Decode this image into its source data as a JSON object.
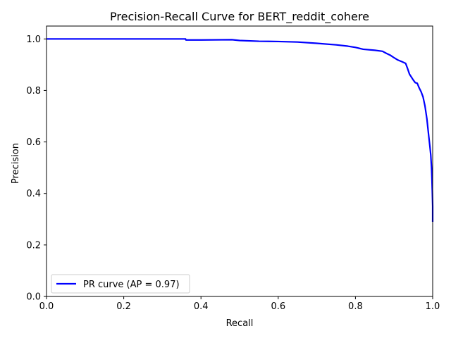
{
  "chart_data": {
    "type": "line",
    "title": "Precision-Recall Curve for BERT_reddit_cohere",
    "xlabel": "Recall",
    "ylabel": "Precision",
    "xlim": [
      0.0,
      1.0
    ],
    "ylim": [
      0.0,
      1.05
    ],
    "xticks": [
      "0.0",
      "0.2",
      "0.4",
      "0.6",
      "0.8",
      "1.0"
    ],
    "yticks": [
      "0.0",
      "0.2",
      "0.4",
      "0.6",
      "0.8",
      "1.0"
    ],
    "grid": false,
    "legend_position": "lower-left",
    "series": [
      {
        "name": "PR curve (AP = 0.97)",
        "color": "#0000ff",
        "x": [
          0.0,
          0.05,
          0.1,
          0.2,
          0.3,
          0.36,
          0.361,
          0.4,
          0.48,
          0.5,
          0.55,
          0.6,
          0.65,
          0.7,
          0.75,
          0.78,
          0.8,
          0.82,
          0.85,
          0.87,
          0.88,
          0.89,
          0.9,
          0.91,
          0.92,
          0.93,
          0.935,
          0.94,
          0.95,
          0.955,
          0.96,
          0.965,
          0.97,
          0.975,
          0.98,
          0.985,
          0.99,
          0.993,
          0.995,
          0.997,
          0.998,
          0.999,
          1.0,
          1.0,
          1.0
        ],
        "y": [
          1.0,
          1.0,
          1.0,
          1.0,
          1.0,
          1.0,
          0.996,
          0.996,
          0.997,
          0.994,
          0.991,
          0.99,
          0.988,
          0.983,
          0.977,
          0.972,
          0.967,
          0.96,
          0.956,
          0.952,
          0.944,
          0.937,
          0.927,
          0.918,
          0.912,
          0.905,
          0.885,
          0.863,
          0.84,
          0.83,
          0.828,
          0.81,
          0.795,
          0.775,
          0.74,
          0.69,
          0.62,
          0.58,
          0.55,
          0.5,
          0.46,
          0.41,
          0.35,
          0.29,
          0.29
        ]
      }
    ]
  }
}
